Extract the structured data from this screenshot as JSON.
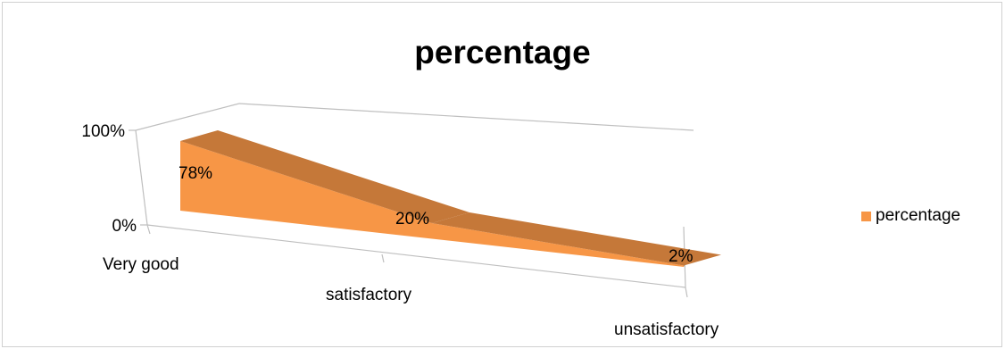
{
  "chart_data": {
    "type": "area",
    "subtype": "3d-area",
    "title": "percentage",
    "categories": [
      "Very good",
      "satisfactory",
      "unsatisfactory"
    ],
    "series": [
      {
        "name": "percentage",
        "values": [
          0.78,
          0.2,
          0.02
        ],
        "labels": [
          "78%",
          "20%",
          "2%"
        ]
      }
    ],
    "y_ticks": [
      "0%",
      "100%"
    ],
    "ylim": [
      0,
      1
    ],
    "legend": {
      "position": "right",
      "label": "percentage"
    },
    "colors": {
      "front": "#F79646",
      "top": "#C57839",
      "axis": "#bfbfbf"
    }
  }
}
